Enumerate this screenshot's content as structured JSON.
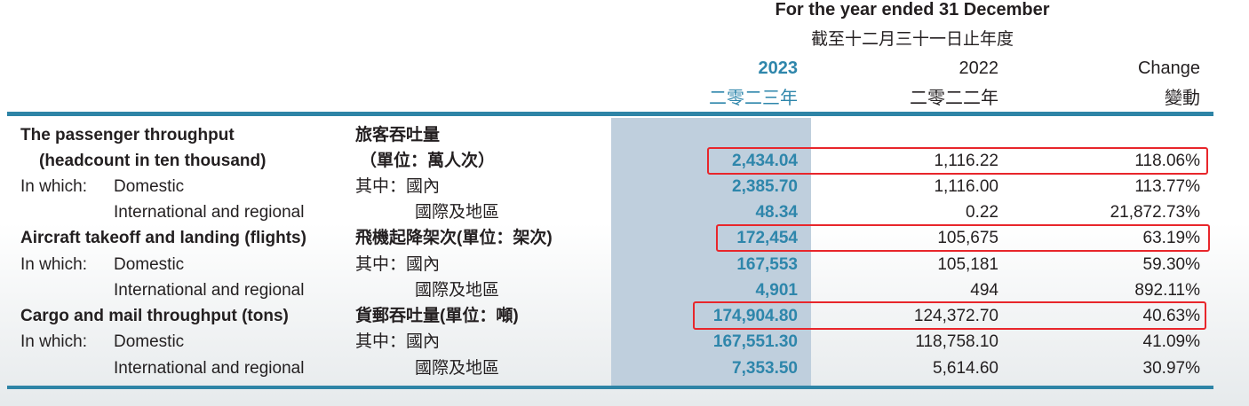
{
  "header": {
    "title": "For the year ended 31 December",
    "title_zh": "截至十二月三十一日止年度",
    "col_2023": "2023",
    "col_2023_zh": "二零二三年",
    "col_2022": "2022",
    "col_2022_zh": "二零二二年",
    "col_change": "Change",
    "col_change_zh": "變動"
  },
  "colors": {
    "accent": "#2e86ab",
    "highlight_column": "#bfcfdd",
    "highlight_box": "#e8262b"
  },
  "rows": [
    {
      "en": "The passenger throughput",
      "zh": "旅客吞吐量",
      "v2023": "",
      "v2022": "",
      "change": ""
    },
    {
      "en": "(headcount in ten thousand)",
      "zh": "（單位：萬人次）",
      "v2023": "2,434.04",
      "v2022": "1,116.22",
      "change": "118.06%"
    },
    {
      "en_prefix": "In which:",
      "en": "Domestic",
      "zh": "其中：國內",
      "v2023": "2,385.70",
      "v2022": "1,116.00",
      "change": "113.77%"
    },
    {
      "en": "International and regional",
      "zh": "國際及地區",
      "v2023": "48.34",
      "v2022": "0.22",
      "change": "21,872.73%"
    },
    {
      "en": "Aircraft takeoff and landing (flights)",
      "zh": "飛機起降架次(單位：架次)",
      "v2023": "172,454",
      "v2022": "105,675",
      "change": "63.19%"
    },
    {
      "en_prefix": "In which:",
      "en": "Domestic",
      "zh": "其中：國內",
      "v2023": "167,553",
      "v2022": "105,181",
      "change": "59.30%"
    },
    {
      "en": "International and regional",
      "zh": "國際及地區",
      "v2023": "4,901",
      "v2022": "494",
      "change": "892.11%"
    },
    {
      "en": "Cargo and mail throughput (tons)",
      "zh": "貨郵吞吐量(單位：噸)",
      "v2023": "174,904.80",
      "v2022": "124,372.70",
      "change": "40.63%"
    },
    {
      "en_prefix": "In which:",
      "en": "Domestic",
      "zh": "其中：國內",
      "v2023": "167,551.30",
      "v2022": "118,758.10",
      "change": "41.09%"
    },
    {
      "en": "International and regional",
      "zh": "國際及地區",
      "v2023": "7,353.50",
      "v2022": "5,614.60",
      "change": "30.97%"
    }
  ]
}
